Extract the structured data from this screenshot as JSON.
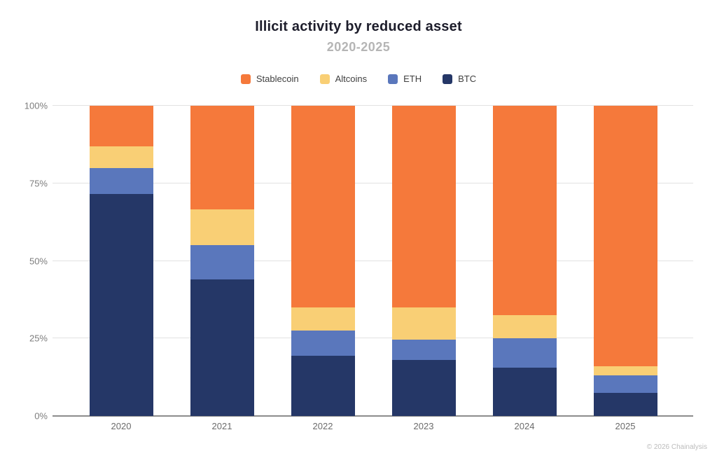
{
  "title": "Illicit activity by reduced asset",
  "subtitle": "2020-2025",
  "footer": "© 2026 Chainalysis",
  "colors": {
    "background": "#ffffff",
    "grid": "#e2e2e2",
    "axis": "#8c8c8c",
    "title_text": "#1d1d2b",
    "subtitle_text": "#b5b5b5",
    "stablecoin": "#f5793b",
    "altcoins": "#f9cf75",
    "eth": "#5a77bc",
    "btc": "#253767"
  },
  "chart_data": {
    "type": "bar",
    "stacked": true,
    "title": "Illicit activity by reduced asset",
    "subtitle": "2020-2025",
    "categories": [
      "2020",
      "2021",
      "2022",
      "2023",
      "2024",
      "2025"
    ],
    "series": [
      {
        "name": "BTC",
        "color": "#253767",
        "values": [
          71.5,
          44.0,
          19.5,
          18.0,
          15.5,
          7.5
        ]
      },
      {
        "name": "ETH",
        "color": "#5a77bc",
        "values": [
          8.5,
          11.0,
          8.0,
          6.5,
          9.5,
          5.5
        ]
      },
      {
        "name": "Altcoins",
        "color": "#f9cf75",
        "values": [
          7.0,
          11.5,
          7.5,
          10.5,
          7.5,
          3.0
        ]
      },
      {
        "name": "Stablecoin",
        "color": "#f5793b",
        "values": [
          13.0,
          33.5,
          65.0,
          65.0,
          67.5,
          84.0
        ]
      }
    ],
    "stack_order": "bottom-to-top",
    "legend_order": [
      "Stablecoin",
      "Altcoins",
      "ETH",
      "BTC"
    ],
    "legend_position": "top",
    "xlabel": "",
    "ylabel": "",
    "ylim": [
      0,
      100
    ],
    "yticks": [
      0,
      25,
      50,
      75,
      100
    ],
    "ytick_format": "percent",
    "grid": true
  }
}
